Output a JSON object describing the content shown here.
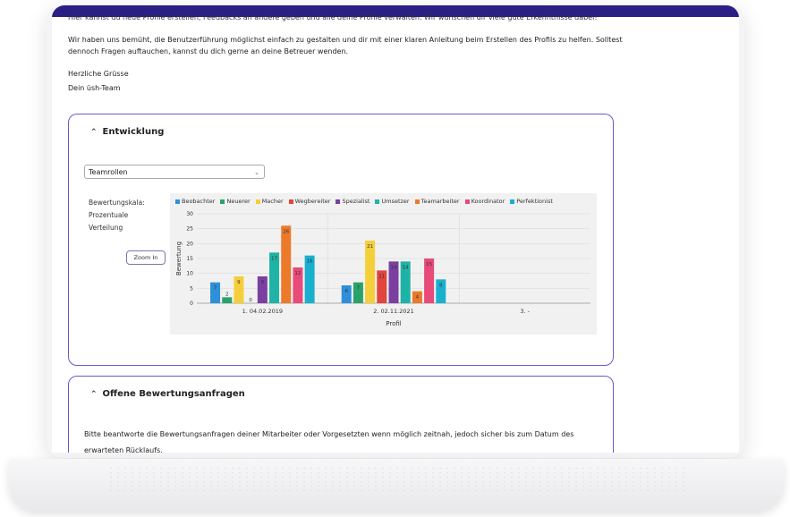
{
  "intro": {
    "cut_line": "Hier kannst du neue Profile erstellen, Feedbacks an andere geben und alle deine Profile verwalten. Wir wünschen dir viele gute Erkenntnisse dabei!",
    "paragraph": "Wir haben uns bemüht, die Benutzerführung möglichst einfach zu gestalten und dir mit einer klaren Anleitung beim Erstellen des Profils zu helfen. Solltest dennoch Fragen auftauchen, kannst du dich gerne an deine Betreuer wenden.",
    "greeting": "Herzliche Grüsse",
    "signature": "Dein üsh-Team"
  },
  "development_card": {
    "title": "Entwicklung",
    "select_value": "Teamrollen",
    "scale_label_1": "Bewertungskala:",
    "scale_label_2": "Prozentuale",
    "scale_label_3": "Verteilung",
    "zoom_label": "Zoom In"
  },
  "requests_card": {
    "title": "Offene Bewertungsanfragen",
    "text": "Bitte beantworte die Bewertungsanfragen deiner Mitarbeiter oder Vorgesetzten wenn möglich zeitnah, jedoch sicher bis zum Datum des erwarteten Rücklaufs."
  },
  "chart_data": {
    "type": "bar",
    "categories": [
      "1. 04.02.2019",
      "2. 02.11.2021",
      "3. -"
    ],
    "xlabel": "Profil",
    "ylabel": "Bewertung",
    "ylim": [
      0,
      30
    ],
    "yticks": [
      0,
      5,
      10,
      15,
      20,
      25,
      30
    ],
    "legend_position": "top",
    "grid": true,
    "series": [
      {
        "name": "Beobachter",
        "color": "#2f8fd8",
        "values": [
          7,
          6,
          null
        ]
      },
      {
        "name": "Neuerer",
        "color": "#2aa36b",
        "values": [
          2,
          7,
          null
        ]
      },
      {
        "name": "Macher",
        "color": "#f5cf3a",
        "values": [
          9,
          21,
          null
        ]
      },
      {
        "name": "Wegbereiter",
        "color": "#e2453c",
        "values": [
          0,
          11,
          null
        ]
      },
      {
        "name": "Spezialist",
        "color": "#7a3fa0",
        "values": [
          9,
          14,
          null
        ]
      },
      {
        "name": "Umsetzer",
        "color": "#1fb3a7",
        "values": [
          17,
          14,
          null
        ]
      },
      {
        "name": "Teamarbeiter",
        "color": "#ec7a2b",
        "values": [
          26,
          4,
          null
        ]
      },
      {
        "name": "Koordinator",
        "color": "#e84a7a",
        "values": [
          12,
          15,
          null
        ]
      },
      {
        "name": "Perfektionist",
        "color": "#19b0d0",
        "values": [
          16,
          8,
          null
        ]
      }
    ]
  }
}
